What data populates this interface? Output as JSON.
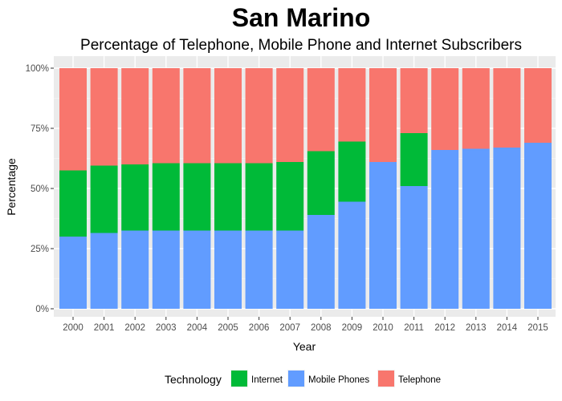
{
  "chart_data": {
    "type": "bar",
    "stacked": true,
    "title": "San Marino",
    "subtitle": "Percentage of Telephone, Mobile Phone and Internet Subscribers",
    "xlabel": "Year",
    "ylabel": "Percentage",
    "ylim": [
      0,
      1
    ],
    "y_ticks": [
      0,
      0.25,
      0.5,
      0.75,
      1.0
    ],
    "y_tick_labels": [
      "0%",
      "25%",
      "50%",
      "75%",
      "100%"
    ],
    "grid": true,
    "legend_position": "bottom",
    "legend_title": "Technology",
    "categories": [
      "2000",
      "2001",
      "2002",
      "2003",
      "2004",
      "2005",
      "2006",
      "2007",
      "2008",
      "2009",
      "2010",
      "2011",
      "2012",
      "2013",
      "2014",
      "2015"
    ],
    "series": [
      {
        "name": "Internet",
        "color": "#00ba38",
        "values": [
          0.275,
          0.28,
          0.275,
          0.28,
          0.28,
          0.28,
          0.28,
          0.285,
          0.265,
          0.25,
          0.0,
          0.22,
          0.0,
          0.0,
          0.0,
          0.0
        ]
      },
      {
        "name": "Mobile Phones",
        "color": "#619cff",
        "values": [
          0.3,
          0.315,
          0.325,
          0.325,
          0.325,
          0.325,
          0.325,
          0.325,
          0.39,
          0.445,
          0.61,
          0.51,
          0.66,
          0.665,
          0.67,
          0.69
        ]
      },
      {
        "name": "Telephone",
        "color": "#f8766d",
        "values": [
          0.425,
          0.405,
          0.4,
          0.395,
          0.395,
          0.395,
          0.395,
          0.39,
          0.345,
          0.305,
          0.39,
          0.27,
          0.34,
          0.335,
          0.33,
          0.31
        ]
      }
    ],
    "stack_order_bottom_to_top": [
      "Mobile Phones",
      "Internet",
      "Telephone"
    ]
  }
}
